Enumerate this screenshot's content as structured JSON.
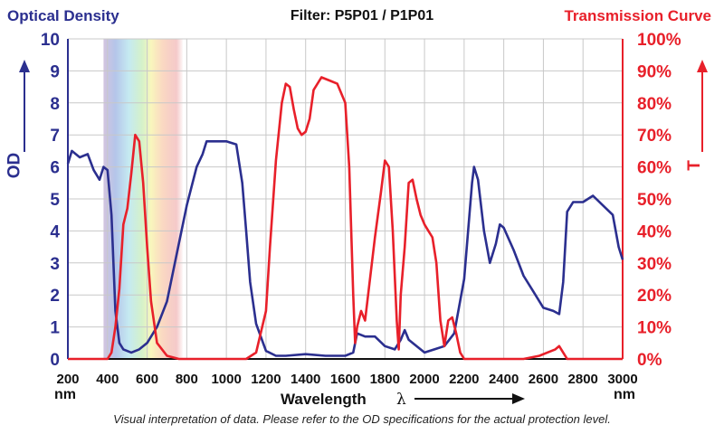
{
  "header": {
    "left_title": "Optical Density",
    "center_title": "Filter: P5P01 / P1P01",
    "right_title": "Transmission Curve"
  },
  "footnote": "Visual interpretation of data. Please refer to the OD specifications for the actual protection level.",
  "colors": {
    "od": "#2b2f8f",
    "transmission": "#e8202a",
    "grid": "#c8c8c8",
    "text": "#111111"
  },
  "chart_data": {
    "type": "line",
    "title": "Filter: P5P01 / P1P01",
    "xlabel": "Wavelength",
    "xlabel_symbol": "λ",
    "xunit": "nm",
    "ylabel": "OD",
    "ylabel_right": "T",
    "xlim": [
      200,
      3000
    ],
    "ylim": [
      0,
      10
    ],
    "ylim_right": [
      0,
      100
    ],
    "grid": true,
    "x_ticks": [
      "200",
      "400",
      "600",
      "800",
      "1000",
      "1200",
      "1400",
      "1600",
      "1800",
      "2000",
      "2200",
      "2400",
      "2600",
      "2800",
      "3000"
    ],
    "y_ticks": [
      "0",
      "1",
      "2",
      "3",
      "4",
      "5",
      "6",
      "7",
      "8",
      "9",
      "10"
    ],
    "y_ticks_right": [
      "0%",
      "10%",
      "20%",
      "30%",
      "40%",
      "50%",
      "60%",
      "70%",
      "80%",
      "90%",
      "100%"
    ],
    "visible_band": [
      380,
      780
    ],
    "series": [
      {
        "name": "Optical Density",
        "axis": "left",
        "x": [
          200,
          220,
          260,
          300,
          330,
          360,
          380,
          400,
          420,
          440,
          460,
          480,
          520,
          560,
          600,
          650,
          700,
          760,
          800,
          850,
          880,
          900,
          950,
          1000,
          1050,
          1080,
          1100,
          1120,
          1150,
          1200,
          1250,
          1300,
          1400,
          1500,
          1600,
          1640,
          1660,
          1700,
          1750,
          1800,
          1850,
          1880,
          1900,
          1920,
          2000,
          2050,
          2100,
          2150,
          2200,
          2240,
          2250,
          2270,
          2300,
          2330,
          2360,
          2380,
          2400,
          2450,
          2500,
          2550,
          2600,
          2650,
          2680,
          2700,
          2720,
          2750,
          2800,
          2850,
          2900,
          2950,
          2980,
          3000
        ],
        "y": [
          6.1,
          6.5,
          6.3,
          6.4,
          5.9,
          5.6,
          6.0,
          5.9,
          4.5,
          1.5,
          0.5,
          0.3,
          0.2,
          0.3,
          0.5,
          1.0,
          1.8,
          3.6,
          4.8,
          6.0,
          6.4,
          6.8,
          6.8,
          6.8,
          6.7,
          5.5,
          4.0,
          2.4,
          1.1,
          0.25,
          0.1,
          0.1,
          0.15,
          0.1,
          0.1,
          0.2,
          0.8,
          0.7,
          0.7,
          0.4,
          0.3,
          0.6,
          0.9,
          0.6,
          0.2,
          0.3,
          0.4,
          0.8,
          2.5,
          5.5,
          6.0,
          5.6,
          4.0,
          3.0,
          3.6,
          4.2,
          4.1,
          3.4,
          2.6,
          2.1,
          1.6,
          1.5,
          1.4,
          2.4,
          4.6,
          4.9,
          4.9,
          5.1,
          4.8,
          4.5,
          3.5,
          3.1
        ]
      },
      {
        "name": "Transmission Curve",
        "axis": "right",
        "x": [
          200,
          400,
          420,
          440,
          460,
          480,
          500,
          520,
          540,
          560,
          580,
          600,
          620,
          650,
          700,
          760,
          800,
          900,
          1000,
          1050,
          1100,
          1150,
          1200,
          1220,
          1250,
          1280,
          1300,
          1320,
          1340,
          1360,
          1380,
          1400,
          1420,
          1440,
          1480,
          1520,
          1560,
          1600,
          1620,
          1640,
          1650,
          1660,
          1680,
          1700,
          1750,
          1780,
          1800,
          1820,
          1840,
          1860,
          1870,
          1880,
          1900,
          1920,
          1940,
          1960,
          1980,
          2000,
          2020,
          2040,
          2060,
          2080,
          2100,
          2120,
          2140,
          2160,
          2180,
          2200,
          2400,
          2500,
          2580,
          2620,
          2660,
          2680,
          2700,
          2720,
          3000
        ],
        "y": [
          0,
          0,
          2,
          10,
          22,
          42,
          47,
          58,
          70,
          68,
          55,
          35,
          18,
          5,
          1,
          0,
          0,
          0,
          0,
          0,
          0,
          2,
          15,
          35,
          62,
          80,
          86,
          85,
          78,
          72,
          70,
          71,
          75,
          84,
          88,
          87,
          86,
          80,
          60,
          20,
          5,
          10,
          15,
          12,
          38,
          52,
          62,
          60,
          40,
          12,
          3,
          20,
          35,
          55,
          56,
          50,
          45,
          42,
          40,
          38,
          30,
          12,
          4,
          12,
          13,
          8,
          2,
          0,
          0,
          0,
          1,
          2,
          3,
          4,
          2,
          0,
          0
        ]
      }
    ]
  }
}
